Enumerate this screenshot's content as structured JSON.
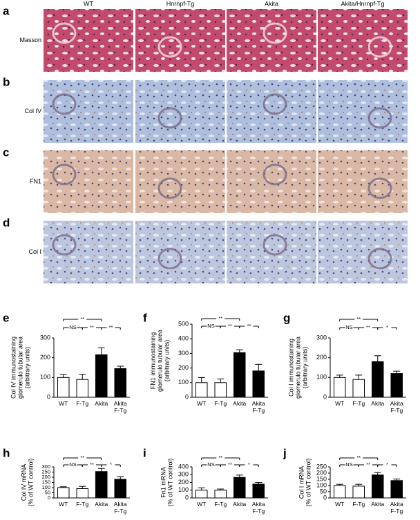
{
  "histology": {
    "panels": [
      "a",
      "b",
      "c",
      "d"
    ],
    "stains": [
      "Masson",
      "Col IV",
      "FN1",
      "Col I"
    ],
    "columns": [
      "WT",
      "Hnrnpf-Tg",
      "Akita",
      "Akita/Hnrnpf-Tg"
    ]
  },
  "chart_data": [
    {
      "type": "bar",
      "label": "e",
      "ylabel": [
        "Col IV immunostaining",
        "glomerulo tubular area",
        "(arbitrary units)"
      ],
      "categories": [
        "WT",
        "F-Tg",
        "Akita",
        "Akita\nF-Tg"
      ],
      "values": [
        100,
        90,
        215,
        145
      ],
      "errors": [
        15,
        25,
        35,
        12
      ],
      "colors": [
        "#ffffff",
        "#ffffff",
        "#000000",
        "#000000"
      ],
      "ylim": [
        0,
        300
      ],
      "yticks": [
        0,
        100,
        200,
        300
      ],
      "comparisons": [
        [
          {
            "pair": [
              0,
              2
            ],
            "label": "**"
          }
        ],
        [
          {
            "pair": [
              0,
              1
            ],
            "label": "NS"
          },
          {
            "pair": [
              1,
              2
            ],
            "label": "**"
          },
          {
            "pair": [
              2,
              3
            ],
            "label": "**"
          }
        ]
      ]
    },
    {
      "type": "bar",
      "label": "f",
      "ylabel": [
        "FN1 immunostaining",
        "glomerulo tubular area",
        "(arbitrary units)"
      ],
      "categories": [
        "WT",
        "F-Tg",
        "Akita",
        "Akita\nF-Tg"
      ],
      "values": [
        100,
        100,
        305,
        180
      ],
      "errors": [
        35,
        25,
        20,
        45
      ],
      "colors": [
        "#ffffff",
        "#ffffff",
        "#000000",
        "#000000"
      ],
      "ylim": [
        0,
        500
      ],
      "yticks": [
        0,
        100,
        200,
        300,
        400,
        500
      ],
      "comparisons": [
        [
          {
            "pair": [
              0,
              2
            ],
            "label": "**"
          }
        ],
        [
          {
            "pair": [
              0,
              1
            ],
            "label": "NS"
          },
          {
            "pair": [
              1,
              2
            ],
            "label": "**"
          },
          {
            "pair": [
              2,
              3
            ],
            "label": "**"
          }
        ]
      ]
    },
    {
      "type": "bar",
      "label": "g",
      "ylabel": [
        "Col I immunostaining",
        "glomerulo tubular area",
        "(arbitrary units)"
      ],
      "categories": [
        "WT",
        "F-Tg",
        "Akita",
        "Akita\nF-Tg"
      ],
      "values": [
        100,
        90,
        180,
        120
      ],
      "errors": [
        12,
        22,
        30,
        12
      ],
      "colors": [
        "#ffffff",
        "#ffffff",
        "#000000",
        "#000000"
      ],
      "ylim": [
        0,
        300
      ],
      "yticks": [
        0,
        100,
        200,
        300
      ],
      "comparisons": [
        [
          {
            "pair": [
              0,
              2
            ],
            "label": "**"
          }
        ],
        [
          {
            "pair": [
              0,
              1
            ],
            "label": "NS"
          },
          {
            "pair": [
              1,
              2
            ],
            "label": "**"
          },
          {
            "pair": [
              2,
              3
            ],
            "label": "*"
          }
        ]
      ]
    },
    {
      "type": "bar",
      "label": "h",
      "ylabel": [
        "Col IV mRNA",
        "(% of WT control)"
      ],
      "categories": [
        "WT",
        "F-Tg",
        "Akita",
        "Akita\nF-Tg"
      ],
      "values": [
        100,
        90,
        255,
        180
      ],
      "errors": [
        8,
        22,
        30,
        25
      ],
      "colors": [
        "#ffffff",
        "#ffffff",
        "#000000",
        "#000000"
      ],
      "ylim": [
        0,
        300
      ],
      "yticks": [
        0,
        50,
        100,
        150,
        200,
        250,
        300
      ],
      "comparisons": [
        [
          {
            "pair": [
              0,
              2
            ],
            "label": "**"
          }
        ],
        [
          {
            "pair": [
              0,
              1
            ],
            "label": "NS"
          },
          {
            "pair": [
              1,
              2
            ],
            "label": "**"
          },
          {
            "pair": [
              2,
              3
            ],
            "label": "*"
          }
        ]
      ]
    },
    {
      "type": "bar",
      "label": "i",
      "ylabel": [
        "Fn1 mRNA",
        "(% of WT control)"
      ],
      "categories": [
        "WT",
        "F-Tg",
        "Akita",
        "Akita\nF-Tg"
      ],
      "values": [
        100,
        100,
        265,
        178
      ],
      "errors": [
        30,
        15,
        30,
        22
      ],
      "colors": [
        "#ffffff",
        "#ffffff",
        "#000000",
        "#000000"
      ],
      "ylim": [
        0,
        400
      ],
      "yticks": [
        0,
        100,
        200,
        300,
        400
      ],
      "comparisons": [
        [
          {
            "pair": [
              0,
              2
            ],
            "label": "**"
          }
        ],
        [
          {
            "pair": [
              0,
              1
            ],
            "label": "NS"
          },
          {
            "pair": [
              1,
              2
            ],
            "label": "**"
          },
          {
            "pair": [
              2,
              3
            ],
            "label": "*"
          }
        ]
      ]
    },
    {
      "type": "bar",
      "label": "j",
      "ylabel": [
        "Col I mRNA",
        "(% of WT control)"
      ],
      "categories": [
        "WT",
        "F-Tg",
        "Akita",
        "Akita\nF-Tg"
      ],
      "values": [
        100,
        95,
        185,
        140
      ],
      "errors": [
        10,
        15,
        20,
        12
      ],
      "colors": [
        "#ffffff",
        "#ffffff",
        "#000000",
        "#000000"
      ],
      "ylim": [
        0,
        250
      ],
      "yticks": [
        0,
        50,
        100,
        150,
        200,
        250
      ],
      "comparisons": [
        [
          {
            "pair": [
              0,
              2
            ],
            "label": "**"
          }
        ],
        [
          {
            "pair": [
              0,
              1
            ],
            "label": "NS"
          },
          {
            "pair": [
              1,
              2
            ],
            "label": "**"
          },
          {
            "pair": [
              2,
              3
            ],
            "label": "*"
          }
        ]
      ]
    }
  ]
}
